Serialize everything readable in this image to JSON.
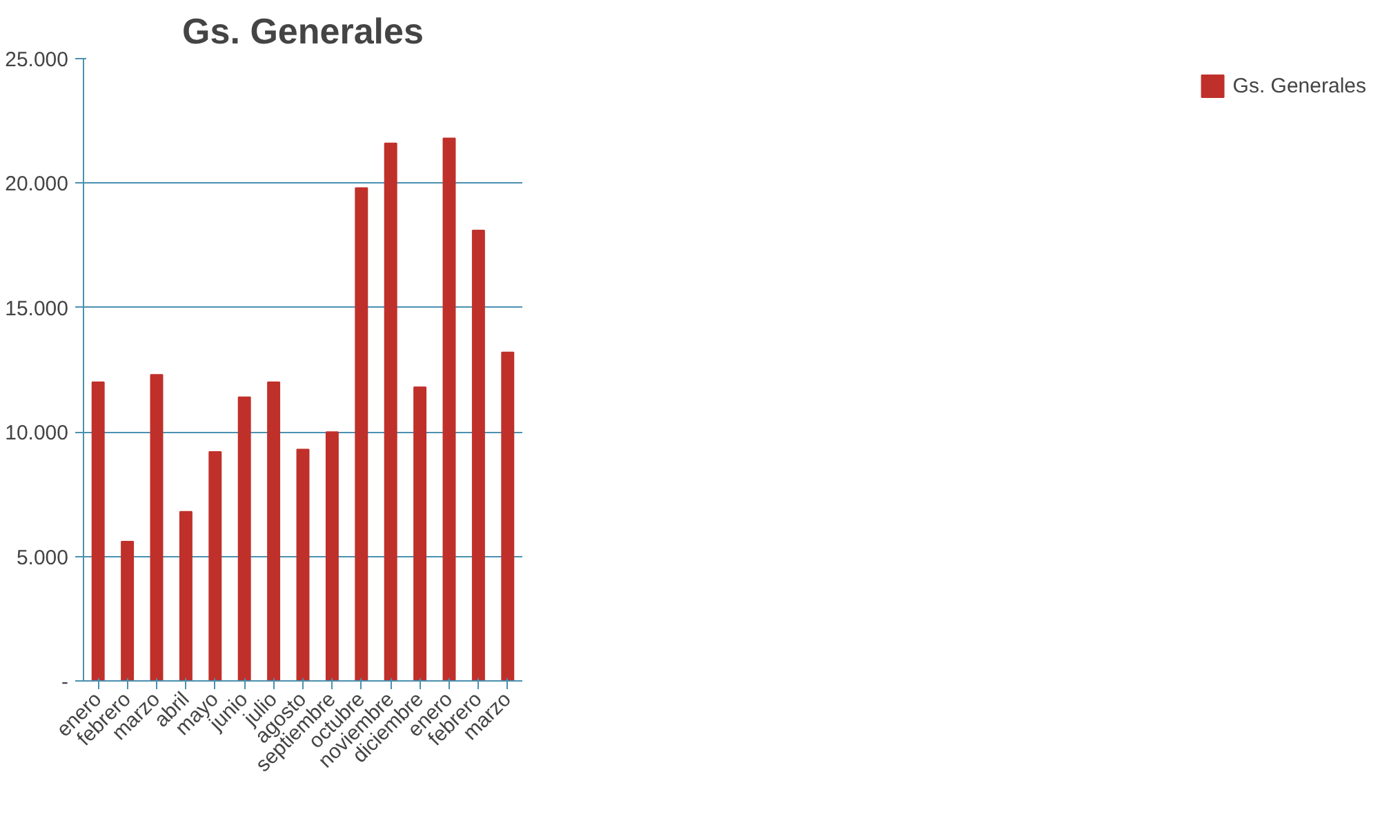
{
  "chart_data": {
    "type": "bar",
    "title": "Gs. Generales",
    "categories": [
      "enero",
      "febrero",
      "marzo",
      "abril",
      "mayo",
      "junio",
      "julio",
      "agosto",
      "septiembre",
      "octubre",
      "noviembre",
      "diciembre",
      "enero",
      "febrero",
      "marzo"
    ],
    "series": [
      {
        "name": "Gs. Generales",
        "color": "#c0302a",
        "values": [
          12000,
          5600,
          12300,
          6800,
          9200,
          11400,
          12000,
          9300,
          10000,
          19800,
          21600,
          11800,
          21800,
          18100,
          13200
        ]
      }
    ],
    "ylim": [
      0,
      25000
    ],
    "yticks": [
      {
        "value": 0,
        "label": "-"
      },
      {
        "value": 5000,
        "label": "5.000"
      },
      {
        "value": 10000,
        "label": "10.000"
      },
      {
        "value": 15000,
        "label": "15.000"
      },
      {
        "value": 20000,
        "label": "20.000"
      },
      {
        "value": 25000,
        "label": "25.000"
      }
    ],
    "grid": "y",
    "legend": "right"
  }
}
